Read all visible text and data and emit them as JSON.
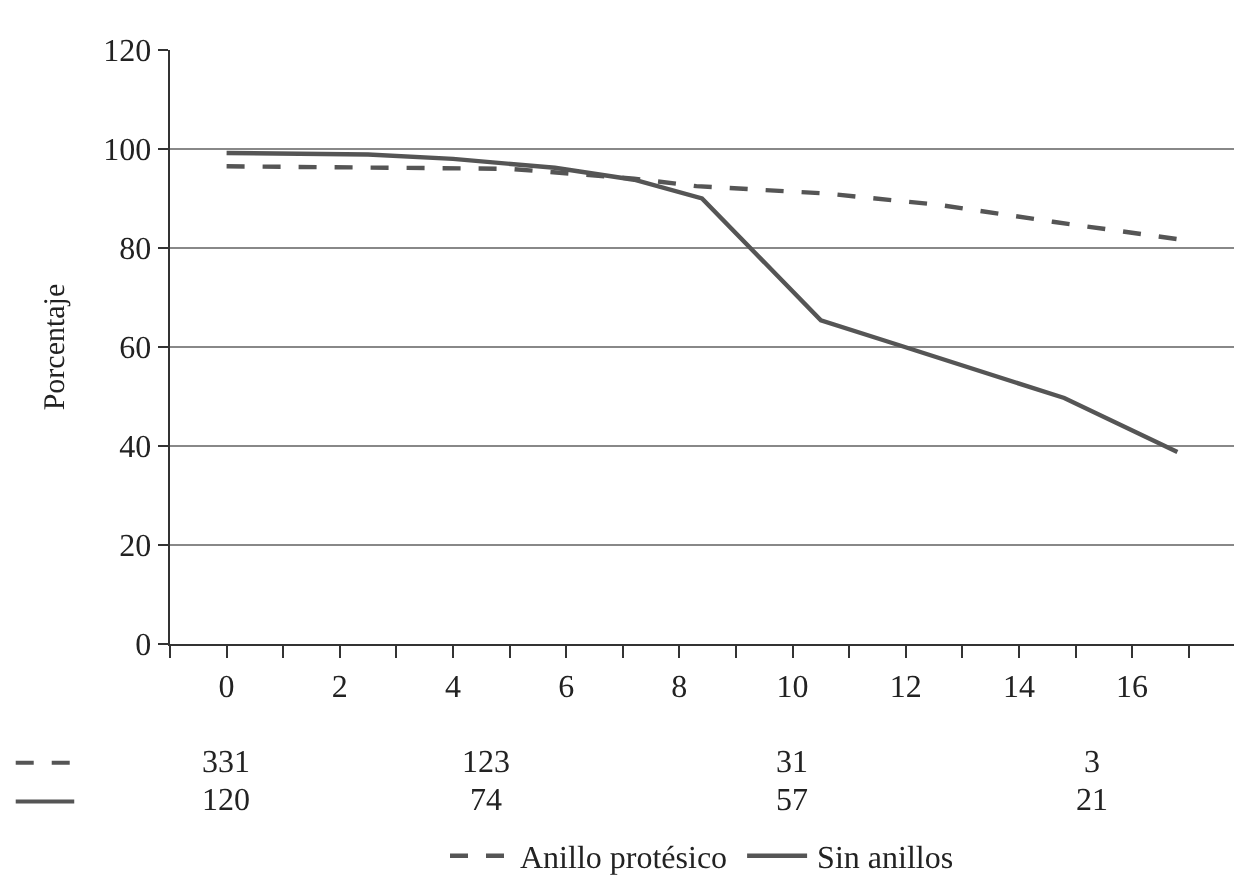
{
  "chart_data": {
    "type": "line",
    "ylabel": "Porcentaje",
    "xlim": [
      -1,
      17.8
    ],
    "xticks": [
      {
        "value": -1,
        "label": null
      },
      0,
      {
        "value": 1,
        "label": null
      },
      2,
      {
        "value": 3,
        "label": null
      },
      4,
      {
        "value": 5,
        "label": null
      },
      6,
      {
        "value": 7,
        "label": null
      },
      8,
      {
        "value": 9,
        "label": null
      },
      10,
      {
        "value": 11,
        "label": null
      },
      12,
      {
        "value": 13,
        "label": null
      },
      14,
      {
        "value": 15,
        "label": null
      },
      16,
      {
        "value": 17,
        "label": null
      }
    ],
    "ylim": [
      0,
      120
    ],
    "yticks": [
      0,
      20,
      40,
      60,
      80,
      100,
      120
    ],
    "grid": "y",
    "legend": "bottom",
    "marker": "none",
    "series": [
      {
        "name": "Anillo protésico",
        "color": "#555555",
        "line_style": "dashed",
        "x": [
          0,
          5,
          7.2,
          8.3,
          10.6,
          12.6,
          14.6,
          16.8
        ],
        "values": [
          96.5,
          96,
          94,
          92.5,
          91,
          88.7,
          85.3,
          81.8
        ]
      },
      {
        "name": "Sin anillos",
        "color": "#555555",
        "line_style": "solid",
        "x": [
          0,
          2.5,
          4,
          5.8,
          7.2,
          8.4,
          10.5,
          11.9,
          14.8,
          16.8
        ],
        "values": [
          99.2,
          98.9,
          98,
          96.2,
          93.8,
          90,
          65.4,
          60.3,
          49.7,
          38.8
        ]
      }
    ],
    "annotations": [
      "331",
      "123",
      "31",
      "3",
      "120",
      "74",
      "57",
      "21"
    ]
  }
}
